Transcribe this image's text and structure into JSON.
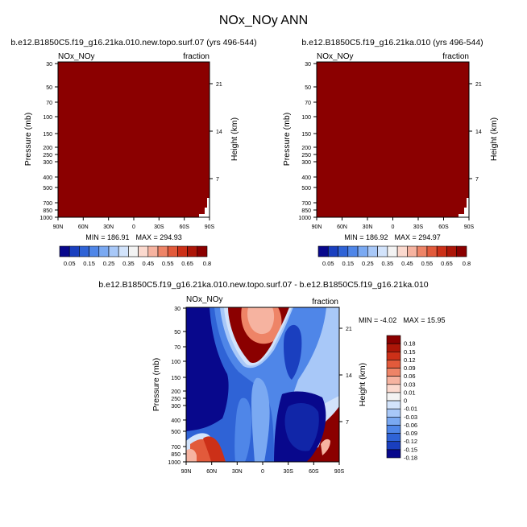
{
  "figure": {
    "title": "NOx_NOy ANN"
  },
  "colors": {
    "maroon": "#8b0000",
    "deep_blue": "#0b0b8c"
  },
  "chart_data": [
    {
      "type": "heatmap",
      "panel": "top-left",
      "title": "b.e12.B1850C5.f19_g16.21ka.010.new.topo.surf.07 (yrs 496-544)",
      "variable": "NOx_NOy",
      "units": "fraction",
      "ylabel": "Pressure (mb)",
      "ylabel_right": "Height (km)",
      "x_ticks": [
        "90N",
        "60N",
        "30N",
        "0",
        "30S",
        "60S",
        "90S"
      ],
      "y_ticks": [
        "30",
        "50",
        "70",
        "100",
        "150",
        "200",
        "250",
        "300",
        "400",
        "500",
        "700",
        "850",
        "1000"
      ],
      "y_ticks_right": [
        "21",
        "14",
        "7"
      ],
      "min_label": "MIN = 186.91",
      "max_label": "MAX = 294.93",
      "colorbar_labels": [
        "0.05",
        "0.15",
        "0.25",
        "0.35",
        "0.45",
        "0.55",
        "0.65",
        "0.8"
      ],
      "fill": "saturated"
    },
    {
      "type": "heatmap",
      "panel": "top-right",
      "title": "b.e12.B1850C5.f19_g16.21ka.010 (yrs 496-544)",
      "variable": "NOx_NOy",
      "units": "fraction",
      "ylabel": "Pressure (mb)",
      "ylabel_right": "Height (km)",
      "x_ticks": [
        "90N",
        "60N",
        "30N",
        "0",
        "30S",
        "60S",
        "90S"
      ],
      "y_ticks": [
        "30",
        "50",
        "70",
        "100",
        "150",
        "200",
        "250",
        "300",
        "400",
        "500",
        "700",
        "850",
        "1000"
      ],
      "y_ticks_right": [
        "21",
        "14",
        "7"
      ],
      "min_label": "MIN = 186.92",
      "max_label": "MAX = 294.97",
      "colorbar_labels": [
        "0.05",
        "0.15",
        "0.25",
        "0.35",
        "0.45",
        "0.55",
        "0.65",
        "0.8"
      ],
      "fill": "saturated"
    },
    {
      "type": "heatmap",
      "panel": "bottom-difference",
      "title": "b.e12.B1850C5.f19_g16.21ka.010.new.topo.surf.07 - b.e12.B1850C5.f19_g16.21ka.010",
      "variable": "NOx_NOy",
      "units": "fraction",
      "ylabel": "Pressure (mb)",
      "ylabel_right": "Height (km)",
      "x_ticks": [
        "90N",
        "60N",
        "30N",
        "0",
        "30S",
        "60S",
        "90S"
      ],
      "y_ticks": [
        "30",
        "50",
        "70",
        "100",
        "150",
        "200",
        "250",
        "300",
        "400",
        "500",
        "700",
        "850",
        "1000"
      ],
      "y_ticks_right": [
        "21",
        "14",
        "7"
      ],
      "min_label": "MIN =  -4.02",
      "max_label": "MAX =  15.95",
      "colorbar_labels": [
        "0.18",
        "0.15",
        "0.12",
        "0.09",
        "0.06",
        "0.03",
        "0.01",
        "0",
        "-0.01",
        "-0.03",
        "-0.06",
        "-0.09",
        "-0.12",
        "-0.15",
        "-0.18"
      ]
    }
  ],
  "palettes": {
    "top": [
      "#08088c",
      "#1a3fbf",
      "#2f63d6",
      "#4f86e8",
      "#7aa9f2",
      "#a8c8f8",
      "#d2e3fb",
      "#f3f3f3",
      "#fbd9ce",
      "#f6b3a0",
      "#ee8467",
      "#e25a3b",
      "#cc3018",
      "#ad1608",
      "#8b0000"
    ],
    "diff": [
      "#8b0000",
      "#ad1608",
      "#cc3018",
      "#e25a3b",
      "#ee8467",
      "#f6b3a0",
      "#fbd9ce",
      "#f3f3f3",
      "#d2e3fb",
      "#a8c8f8",
      "#7aa9f2",
      "#4f86e8",
      "#2f63d6",
      "#1a3fbf",
      "#08088c"
    ]
  }
}
